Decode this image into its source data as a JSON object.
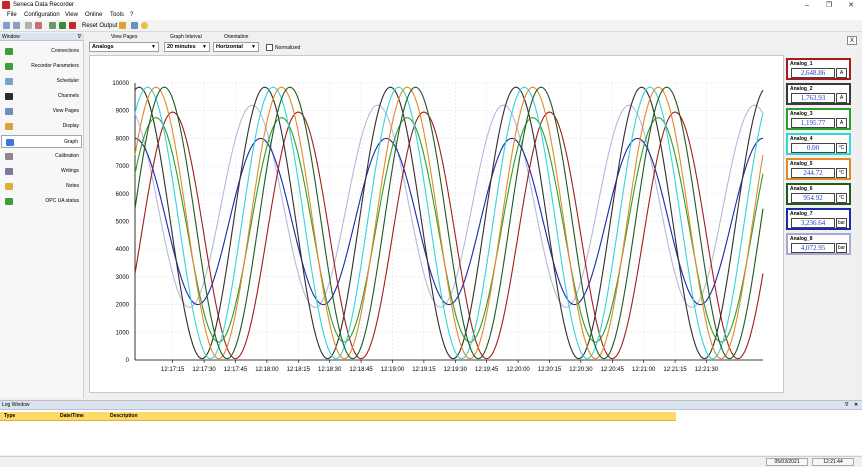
{
  "window": {
    "title": "Seneca Data Recorder"
  },
  "menu": [
    "File",
    "Configuration",
    "View",
    "Online",
    "Tools",
    "?"
  ],
  "toolbar": {
    "reset_label": "Reset Output"
  },
  "sidebar": {
    "title": "Window",
    "items": [
      {
        "label": "Connections",
        "icon": "connections-icon",
        "color": "#3f9d3a"
      },
      {
        "label": "Recorder Parameters",
        "icon": "recorder-parameters-icon",
        "color": "#3f9d3a"
      },
      {
        "label": "Scheduler",
        "icon": "scheduler-icon",
        "color": "#7aa0d0"
      },
      {
        "label": "Channels",
        "icon": "channels-icon",
        "color": "#2b2b2b"
      },
      {
        "label": "View Pages",
        "icon": "view-pages-icon",
        "color": "#6a8fc0"
      },
      {
        "label": "Display",
        "icon": "display-icon",
        "color": "#d9a33a"
      },
      {
        "label": "Graph",
        "icon": "graph-icon",
        "color": "#3a7ad9"
      },
      {
        "label": "Calibration",
        "icon": "calibration-icon",
        "color": "#8a8a8a"
      },
      {
        "label": "Writings",
        "icon": "writings-icon",
        "color": "#7a7a9a"
      },
      {
        "label": "Notes",
        "icon": "notes-icon",
        "color": "#d9b23a"
      },
      {
        "label": "OPC UA status",
        "icon": "opc-ua-icon",
        "color": "#3f9d3a"
      }
    ],
    "active_index": 6
  },
  "controls": {
    "view_pages_label": "View Pages",
    "view_pages_value": "Analogs",
    "interval_label": "Graph Interval",
    "interval_value": "20 minutes",
    "orientation_label": "Orientation",
    "orientation_value": "Horizontal",
    "normalized_label": "Normalized",
    "close_label": "X"
  },
  "channels": [
    {
      "name": "Analog_1",
      "value": "2,648.86",
      "unit": "A",
      "color": "#a31d1d"
    },
    {
      "name": "Analog_2",
      "value": "1,763.93",
      "unit": "A",
      "color": "#3a3a3a"
    },
    {
      "name": "Analog_3",
      "value": "1,195.77",
      "unit": "A",
      "color": "#2aa02a"
    },
    {
      "name": "Analog_4",
      "value": "0.00",
      "unit": "°C",
      "color": "#33d6d6"
    },
    {
      "name": "Analog_5",
      "value": "244.72",
      "unit": "°C",
      "color": "#e08a2a"
    },
    {
      "name": "Analog_6",
      "value": "954.92",
      "unit": "°C",
      "color": "#1f5a1f"
    },
    {
      "name": "Analog_7",
      "value": "3,236.64",
      "unit": "bar",
      "color": "#1a2aa8"
    },
    {
      "name": "Analog_8",
      "value": "4,072.95",
      "unit": "bar",
      "color": "#a9a9cf"
    }
  ],
  "chart_data": {
    "type": "line",
    "title": "",
    "xlabel": "",
    "ylabel": "",
    "ylim": [
      0,
      10000
    ],
    "yticks": [
      0,
      1000,
      2000,
      3000,
      4000,
      5000,
      6000,
      7000,
      8000,
      9000,
      10000
    ],
    "xlim": [
      "12:16:57",
      "12:21:57"
    ],
    "xticks": [
      "12:17:15",
      "12:17:30",
      "12:17:45",
      "12:18:00",
      "12:18:15",
      "12:18:30",
      "12:18:45",
      "12:19:00",
      "12:19:15",
      "12:19:30",
      "12:19:45",
      "12:20:00",
      "12:20:15",
      "12:20:30",
      "12:20:45",
      "12:21:00",
      "12:21:15",
      "12:21:30"
    ],
    "grid": true,
    "period_seconds": 60,
    "series": [
      {
        "channel": "Analog_1",
        "color": "#a31d1d",
        "center": 4500,
        "amplitude": 4450,
        "peak_time": "12:17:15"
      },
      {
        "channel": "Analog_2",
        "color": "#2f2f2f",
        "center": 4950,
        "amplitude": 4900,
        "peak_time": "12:16:59"
      },
      {
        "channel": "Analog_3",
        "color": "#2aa02a",
        "center": 4700,
        "amplitude": 4050,
        "peak_time": "12:17:07"
      },
      {
        "channel": "Analog_4",
        "color": "#33d6d6",
        "center": 4950,
        "amplitude": 4900,
        "peak_time": "12:17:03"
      },
      {
        "channel": "Analog_5",
        "color": "#e08a2a",
        "center": 4950,
        "amplitude": 4900,
        "peak_time": "12:17:07"
      },
      {
        "channel": "Analog_6",
        "color": "#1f5a1f",
        "center": 4950,
        "amplitude": 4900,
        "peak_time": "12:17:11"
      },
      {
        "channel": "Analog_7",
        "color": "#1a2aa8",
        "center": 5000,
        "amplitude": 3000,
        "peak_time": "12:16:57"
      },
      {
        "channel": "Analog_8",
        "color": "#b8b8da",
        "center": 5550,
        "amplitude": 3650,
        "peak_time": "12:16:53"
      }
    ]
  },
  "log": {
    "title": "Log Window",
    "columns": [
      "Type",
      "Date/Time",
      "Description"
    ]
  },
  "status": {
    "date": "05/03/2021",
    "time": "12:21:44"
  }
}
